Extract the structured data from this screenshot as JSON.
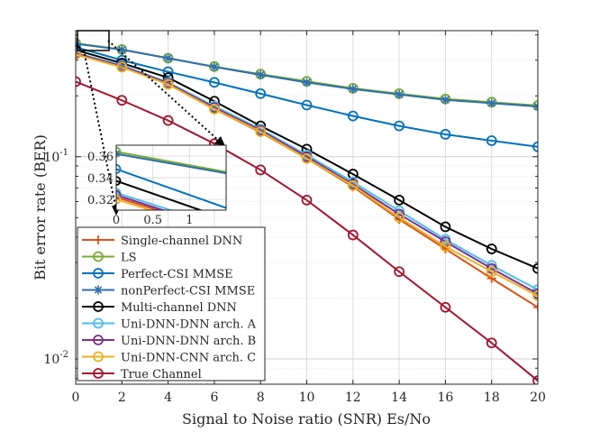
{
  "chart_data": {
    "type": "line",
    "title": "",
    "xlabel": "Signal to Noise ratio (SNR) Es/No",
    "ylabel": "Bit error rate (BER)",
    "xlim": [
      0,
      20
    ],
    "ylim": [
      0.0075,
      0.42
    ],
    "yscale": "log",
    "grid": true,
    "legend_position": "bottom-left",
    "x_ticks": [
      "0",
      "2",
      "4",
      "6",
      "8",
      "10",
      "12",
      "14",
      "16",
      "18",
      "20"
    ],
    "x": [
      0,
      2,
      4,
      6,
      8,
      10,
      12,
      14,
      16,
      18,
      20
    ],
    "series": [
      {
        "name": "Single-channel DNN",
        "color": "#D95319",
        "marker": "plus",
        "values": [
          0.322,
          0.279,
          0.228,
          0.172,
          0.132,
          0.098,
          0.071,
          0.049,
          0.035,
          0.025,
          0.018
        ]
      },
      {
        "name": "LS",
        "color": "#77AC30",
        "marker": "circle",
        "values": [
          0.364,
          0.339,
          0.307,
          0.279,
          0.256,
          0.236,
          0.218,
          0.205,
          0.193,
          0.186,
          0.179
        ]
      },
      {
        "name": "Perfect-CSI MMSE",
        "color": "#0072BD",
        "marker": "circle",
        "values": [
          0.348,
          0.3,
          0.263,
          0.233,
          0.205,
          0.18,
          0.159,
          0.142,
          0.129,
          0.12,
          0.112
        ]
      },
      {
        "name": "nonPerfect-CSI MMSE",
        "color": "#2F6FB0",
        "marker": "star",
        "values": [
          0.362,
          0.338,
          0.307,
          0.278,
          0.254,
          0.233,
          0.216,
          0.203,
          0.191,
          0.184,
          0.177
        ]
      },
      {
        "name": "Multi-channel DNN",
        "color": "#000000",
        "marker": "circle",
        "values": [
          0.337,
          0.29,
          0.246,
          0.188,
          0.142,
          0.109,
          0.082,
          0.061,
          0.045,
          0.035,
          0.028
        ]
      },
      {
        "name": "Uni-DNN-DNN arch. A",
        "color": "#4DBEEE",
        "marker": "circle",
        "values": [
          0.326,
          0.283,
          0.233,
          0.178,
          0.137,
          0.102,
          0.075,
          0.054,
          0.039,
          0.029,
          0.022
        ]
      },
      {
        "name": "Uni-DNN-DNN arch. B",
        "color": "#7E2F8E",
        "marker": "circle",
        "values": [
          0.324,
          0.28,
          0.231,
          0.175,
          0.135,
          0.1,
          0.073,
          0.052,
          0.038,
          0.028,
          0.021
        ]
      },
      {
        "name": "Uni-DNN-CNN arch. C",
        "color": "#EDB120",
        "marker": "circle",
        "values": [
          0.32,
          0.277,
          0.228,
          0.172,
          0.133,
          0.098,
          0.072,
          0.05,
          0.036,
          0.027,
          0.0205
        ]
      },
      {
        "name": "True Channel",
        "color": "#A2142F",
        "marker": "circle",
        "values": [
          0.235,
          0.19,
          0.151,
          0.116,
          0.086,
          0.061,
          0.041,
          0.027,
          0.018,
          0.012,
          0.0078
        ]
      }
    ],
    "inset": {
      "x_ticks": [
        "0",
        "0.5",
        "1"
      ],
      "y_ticks": [
        "0.32",
        "0.34",
        "0.36"
      ],
      "xlim": [
        0,
        1.5
      ],
      "ylim": [
        0.31,
        0.37
      ]
    }
  }
}
